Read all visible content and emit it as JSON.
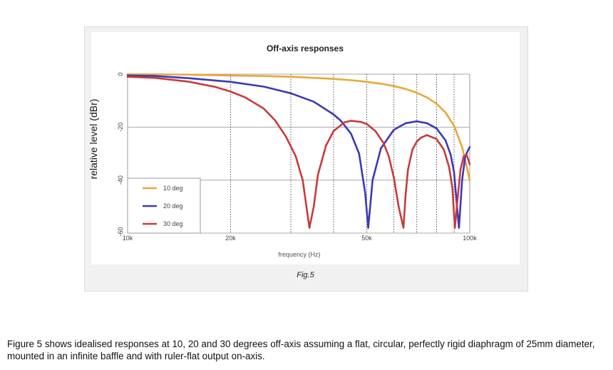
{
  "chart_data": {
    "type": "line",
    "title": "Off-axis responses",
    "xlabel": "frequency (Hz)",
    "ylabel": "relative level (dBr)",
    "x_scale": "log",
    "xlim": [
      10000,
      100000
    ],
    "ylim": [
      -60,
      0
    ],
    "x_tick_values": [
      10000,
      20000,
      50000,
      100000
    ],
    "x_tick_labels": [
      "10k",
      "20k",
      "50k",
      "100k"
    ],
    "y_tick_values": [
      0,
      -20,
      -40,
      -60
    ],
    "y_tick_labels": [
      "0",
      "-20",
      "-40",
      "-60"
    ],
    "grid": true,
    "legend": "bottom-left",
    "series": [
      {
        "name": "10 deg",
        "color": "#e8a838",
        "x": [
          10000,
          15000,
          20000,
          25000,
          30000,
          35000,
          40000,
          45000,
          50000,
          55000,
          60000,
          65000,
          70000,
          75000,
          80000,
          85000,
          90000,
          95000,
          100000
        ],
        "y": [
          0,
          -0.2,
          -0.5,
          -0.7,
          -1.0,
          -1.4,
          -1.8,
          -2.3,
          -2.9,
          -3.6,
          -4.5,
          -5.6,
          -7.0,
          -8.8,
          -11.2,
          -14.5,
          -19.5,
          -27.5,
          -40.0
        ]
      },
      {
        "name": "20 deg",
        "color": "#3a3ab8",
        "x": [
          10000,
          12000,
          15000,
          20000,
          25000,
          30000,
          35000,
          40000,
          42000,
          45000,
          47500,
          49500,
          50500,
          52000,
          55000,
          60000,
          65000,
          70000,
          75000,
          80000,
          85000,
          88000,
          90000,
          91500,
          93000,
          95000,
          97000,
          100000
        ],
        "y": [
          -0.5,
          -0.7,
          -1.5,
          -2.9,
          -4.7,
          -7.2,
          -10.4,
          -15.2,
          -17.6,
          -22.5,
          -30.0,
          -45.0,
          -58.0,
          -40.0,
          -28.0,
          -21.0,
          -18.5,
          -17.8,
          -18.5,
          -20.5,
          -25.0,
          -30.5,
          -37.0,
          -48.0,
          -58.0,
          -40.0,
          -31.0,
          -27.5
        ]
      },
      {
        "name": "30 deg",
        "color": "#c93a3a",
        "x": [
          10000,
          12000,
          15000,
          18000,
          20000,
          22000,
          25000,
          27000,
          29000,
          31000,
          32500,
          34000,
          35000,
          36000,
          38000,
          40000,
          43000,
          45000,
          48000,
          50000,
          53000,
          56000,
          58000,
          60000,
          62000,
          64000,
          65000,
          66000,
          68000,
          70000,
          72000,
          75000,
          80000,
          84000,
          87000,
          89000,
          90500,
          92000,
          94000,
          96000,
          98000,
          100000
        ],
        "y": [
          -1.0,
          -1.4,
          -2.8,
          -4.8,
          -6.6,
          -8.7,
          -13.0,
          -17.5,
          -23.5,
          -31.0,
          -40.0,
          -58.0,
          -50.0,
          -38.0,
          -27.0,
          -21.5,
          -18.2,
          -17.6,
          -18.0,
          -18.8,
          -21.5,
          -26.0,
          -31.0,
          -39.0,
          -50.0,
          -58.0,
          -45.0,
          -36.0,
          -28.5,
          -25.5,
          -24.0,
          -23.0,
          -24.5,
          -28.5,
          -35.0,
          -43.0,
          -58.0,
          -48.0,
          -36.0,
          -31.0,
          -30.5,
          -34.0
        ]
      }
    ]
  },
  "figure_label": "Fig.5",
  "caption": "Figure 5 shows idealised responses at 10, 20 and 30 degrees off-axis assuming a flat, circular, perfectly rigid diaphragm of 25mm diameter, mounted in an infinite baffle and with ruler-flat output on-axis."
}
